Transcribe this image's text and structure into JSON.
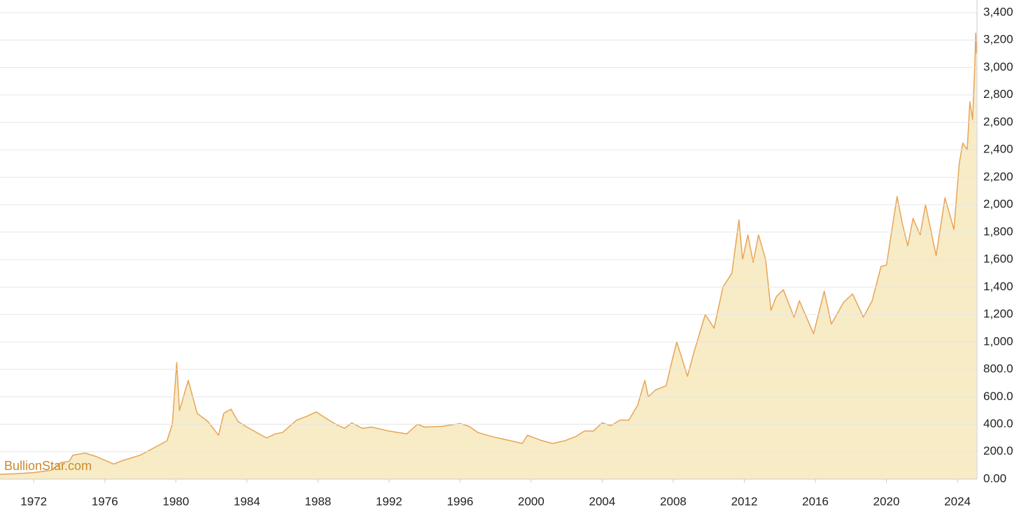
{
  "chart_data": {
    "type": "area",
    "watermark": "BullionStar.com",
    "color": "#e8a456",
    "fill_color": "#f7ecc6",
    "grid": true,
    "xlim": [
      1970.1,
      2025.1
    ],
    "ylim": [
      0,
      3400
    ],
    "xticks": [
      1972,
      1976,
      1980,
      1984,
      1988,
      1992,
      1996,
      2000,
      2004,
      2008,
      2012,
      2016,
      2020,
      2024
    ],
    "yticks": [
      {
        "value": 0,
        "label": "0.00"
      },
      {
        "value": 200,
        "label": "200.0"
      },
      {
        "value": 400,
        "label": "400.0"
      },
      {
        "value": 600,
        "label": "600.0"
      },
      {
        "value": 800,
        "label": "800.0"
      },
      {
        "value": 1000,
        "label": "1,000"
      },
      {
        "value": 1200,
        "label": "1,200"
      },
      {
        "value": 1400,
        "label": "1,400"
      },
      {
        "value": 1600,
        "label": "1,600"
      },
      {
        "value": 1800,
        "label": "1,800"
      },
      {
        "value": 2000,
        "label": "2,000"
      },
      {
        "value": 2200,
        "label": "2,200"
      },
      {
        "value": 2400,
        "label": "2,400"
      },
      {
        "value": 2600,
        "label": "2,600"
      },
      {
        "value": 2800,
        "label": "2,800"
      },
      {
        "value": 3000,
        "label": "3,000"
      },
      {
        "value": 3200,
        "label": "3,200"
      },
      {
        "value": 3400,
        "label": "3,400"
      }
    ],
    "x": [
      1970.1,
      1971,
      1972,
      1973,
      1973.5,
      1974,
      1974.2,
      1974.9,
      1975.5,
      1976.5,
      1977,
      1978,
      1978.8,
      1979.5,
      1979.8,
      1980.05,
      1980.2,
      1980.7,
      1981.2,
      1981.8,
      1982.4,
      1982.7,
      1983.1,
      1983.5,
      1984,
      1985.1,
      1985.6,
      1986,
      1986.8,
      1987.4,
      1987.9,
      1988.5,
      1989,
      1989.5,
      1989.9,
      1990.5,
      1991,
      1992,
      1993,
      1993.6,
      1994,
      1995,
      1996,
      1996.5,
      1997,
      1997.8,
      1998.5,
      1999.5,
      1999.8,
      2000.5,
      2001.2,
      2001.9,
      2002.5,
      2003,
      2003.5,
      2004,
      2004.5,
      2005,
      2005.5,
      2006,
      2006.4,
      2006.6,
      2007,
      2007.6,
      2008,
      2008.2,
      2008.8,
      2009.2,
      2009.8,
      2010.3,
      2010.8,
      2011.3,
      2011.7,
      2011.9,
      2012.2,
      2012.5,
      2012.8,
      2013.2,
      2013.5,
      2013.8,
      2014.2,
      2014.8,
      2015.1,
      2015.9,
      2016.5,
      2016.9,
      2017.6,
      2018.1,
      2018.7,
      2019.2,
      2019.7,
      2020,
      2020.6,
      2020.9,
      2021.2,
      2021.5,
      2021.9,
      2022.2,
      2022.8,
      2023.3,
      2023.8,
      2024.1,
      2024.3,
      2024.55,
      2024.7,
      2024.85,
      2024.97,
      2025.03,
      2025.07
    ],
    "values": [
      35,
      40,
      48,
      65,
      120,
      130,
      175,
      190,
      165,
      110,
      135,
      175,
      230,
      280,
      400,
      850,
      500,
      720,
      480,
      420,
      320,
      480,
      510,
      420,
      380,
      300,
      330,
      340,
      430,
      460,
      490,
      440,
      400,
      370,
      410,
      370,
      380,
      350,
      330,
      400,
      380,
      385,
      405,
      385,
      340,
      310,
      290,
      260,
      320,
      285,
      260,
      280,
      310,
      350,
      350,
      410,
      390,
      430,
      430,
      540,
      720,
      600,
      650,
      680,
      900,
      1000,
      750,
      940,
      1200,
      1100,
      1400,
      1500,
      1890,
      1600,
      1780,
      1580,
      1780,
      1600,
      1230,
      1330,
      1380,
      1180,
      1300,
      1060,
      1370,
      1130,
      1290,
      1350,
      1180,
      1300,
      1550,
      1560,
      2060,
      1860,
      1700,
      1900,
      1780,
      2000,
      1630,
      2050,
      1820,
      2300,
      2450,
      2400,
      2750,
      2620,
      3000,
      3250,
      3100
    ]
  }
}
